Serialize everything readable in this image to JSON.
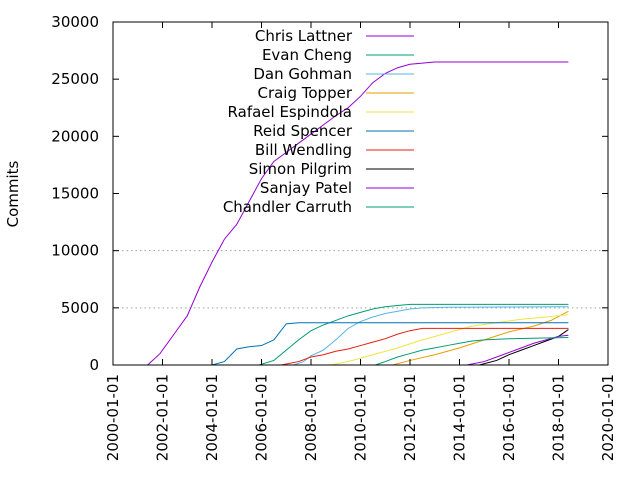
{
  "chart_data": {
    "type": "line",
    "title": "",
    "xlabel": "",
    "ylabel": "Commits",
    "xlim": [
      2000.0,
      2020.0
    ],
    "ylim": [
      0,
      30000
    ],
    "y_ticks": [
      0,
      5000,
      10000,
      15000,
      20000,
      25000,
      30000
    ],
    "y_tick_labels": [
      "0",
      "5000",
      "10000",
      "15000",
      "20000",
      "25000",
      "30000"
    ],
    "x_ticks": [
      2000,
      2002,
      2004,
      2006,
      2008,
      2010,
      2012,
      2014,
      2016,
      2018,
      2020
    ],
    "x_tick_labels": [
      "2000-01-01",
      "2002-01-01",
      "2004-01-01",
      "2006-01-01",
      "2008-01-01",
      "2010-01-01",
      "2012-01-01",
      "2014-01-01",
      "2016-01-01",
      "2018-01-01",
      "2020-01-01"
    ],
    "grid_y_at": [
      5000,
      10000
    ],
    "legend_position": "top-left",
    "series": [
      {
        "name": "Chris Lattner",
        "color": "#9400d3",
        "points": [
          [
            2001.4,
            0
          ],
          [
            2001.9,
            1000
          ],
          [
            2002.5,
            2800
          ],
          [
            2003.0,
            4300
          ],
          [
            2003.5,
            6800
          ],
          [
            2004.0,
            9000
          ],
          [
            2004.5,
            11000
          ],
          [
            2005.0,
            12300
          ],
          [
            2005.5,
            14300
          ],
          [
            2006.0,
            16300
          ],
          [
            2006.5,
            17800
          ],
          [
            2007.0,
            18600
          ],
          [
            2007.5,
            19400
          ],
          [
            2008.0,
            20200
          ],
          [
            2008.5,
            21000
          ],
          [
            2009.0,
            21800
          ],
          [
            2009.5,
            22500
          ],
          [
            2010.0,
            23500
          ],
          [
            2010.5,
            24700
          ],
          [
            2011.0,
            25500
          ],
          [
            2011.5,
            26000
          ],
          [
            2012.0,
            26300
          ],
          [
            2013.0,
            26500
          ],
          [
            2018.4,
            26500
          ]
        ]
      },
      {
        "name": "Evan Cheng",
        "color": "#009e73",
        "points": [
          [
            2005.9,
            0
          ],
          [
            2006.5,
            400
          ],
          [
            2007.0,
            1300
          ],
          [
            2007.5,
            2200
          ],
          [
            2008.0,
            3000
          ],
          [
            2008.5,
            3500
          ],
          [
            2009.0,
            3900
          ],
          [
            2009.5,
            4300
          ],
          [
            2010.0,
            4600
          ],
          [
            2010.5,
            4900
          ],
          [
            2011.0,
            5100
          ],
          [
            2011.5,
            5200
          ],
          [
            2012.0,
            5300
          ],
          [
            2018.4,
            5300
          ]
        ]
      },
      {
        "name": "Dan Gohman",
        "color": "#56b4e9",
        "points": [
          [
            2007.3,
            0
          ],
          [
            2007.7,
            300
          ],
          [
            2008.0,
            800
          ],
          [
            2008.5,
            1300
          ],
          [
            2009.0,
            2200
          ],
          [
            2009.5,
            3200
          ],
          [
            2010.0,
            3800
          ],
          [
            2010.5,
            4200
          ],
          [
            2011.0,
            4500
          ],
          [
            2011.5,
            4700
          ],
          [
            2012.0,
            4900
          ],
          [
            2012.5,
            5000
          ],
          [
            2013.5,
            5050
          ],
          [
            2018.4,
            5100
          ]
        ]
      },
      {
        "name": "Craig Topper",
        "color": "#e69f00",
        "points": [
          [
            2011.3,
            0
          ],
          [
            2012.0,
            400
          ],
          [
            2013.0,
            900
          ],
          [
            2014.0,
            1500
          ],
          [
            2015.0,
            2200
          ],
          [
            2016.0,
            2900
          ],
          [
            2017.0,
            3400
          ],
          [
            2017.7,
            3900
          ],
          [
            2018.4,
            4700
          ]
        ]
      },
      {
        "name": "Rafael Espindola",
        "color": "#f0e442",
        "points": [
          [
            2008.8,
            0
          ],
          [
            2009.5,
            300
          ],
          [
            2010.5,
            900
          ],
          [
            2011.5,
            1500
          ],
          [
            2012.5,
            2200
          ],
          [
            2013.5,
            2800
          ],
          [
            2014.5,
            3400
          ],
          [
            2015.5,
            3700
          ],
          [
            2016.5,
            4000
          ],
          [
            2017.5,
            4200
          ],
          [
            2018.4,
            4400
          ]
        ]
      },
      {
        "name": "Reid Spencer",
        "color": "#0072b2",
        "points": [
          [
            2004.0,
            0
          ],
          [
            2004.5,
            300
          ],
          [
            2005.0,
            1400
          ],
          [
            2005.5,
            1600
          ],
          [
            2006.0,
            1700
          ],
          [
            2006.5,
            2200
          ],
          [
            2007.0,
            3600
          ],
          [
            2007.5,
            3700
          ],
          [
            2018.4,
            3700
          ]
        ]
      },
      {
        "name": "Bill Wendling",
        "color": "#e51e10",
        "points": [
          [
            2006.8,
            0
          ],
          [
            2007.5,
            300
          ],
          [
            2008.0,
            700
          ],
          [
            2008.5,
            900
          ],
          [
            2009.0,
            1200
          ],
          [
            2009.5,
            1400
          ],
          [
            2010.0,
            1700
          ],
          [
            2010.5,
            2000
          ],
          [
            2011.0,
            2300
          ],
          [
            2011.5,
            2700
          ],
          [
            2012.0,
            3000
          ],
          [
            2012.5,
            3200
          ],
          [
            2018.4,
            3200
          ]
        ]
      },
      {
        "name": "Simon Pilgrim",
        "color": "#000000",
        "points": [
          [
            2014.8,
            0
          ],
          [
            2015.5,
            400
          ],
          [
            2016.0,
            900
          ],
          [
            2016.5,
            1300
          ],
          [
            2017.0,
            1700
          ],
          [
            2017.5,
            2100
          ],
          [
            2018.0,
            2500
          ],
          [
            2018.4,
            3100
          ]
        ]
      },
      {
        "name": "Sanjay Patel",
        "color": "#9400d3",
        "points": [
          [
            2014.3,
            0
          ],
          [
            2015.0,
            300
          ],
          [
            2015.5,
            700
          ],
          [
            2016.0,
            1100
          ],
          [
            2016.5,
            1500
          ],
          [
            2017.0,
            1900
          ],
          [
            2017.5,
            2200
          ],
          [
            2018.0,
            2500
          ],
          [
            2018.4,
            2600
          ]
        ]
      },
      {
        "name": "Chandler Carruth",
        "color": "#009e73",
        "points": [
          [
            2010.6,
            0
          ],
          [
            2011.0,
            300
          ],
          [
            2011.5,
            700
          ],
          [
            2012.0,
            1000
          ],
          [
            2012.5,
            1300
          ],
          [
            2013.0,
            1500
          ],
          [
            2013.5,
            1700
          ],
          [
            2014.0,
            1900
          ],
          [
            2014.5,
            2100
          ],
          [
            2015.0,
            2200
          ],
          [
            2016.0,
            2300
          ],
          [
            2018.4,
            2400
          ]
        ]
      }
    ]
  }
}
